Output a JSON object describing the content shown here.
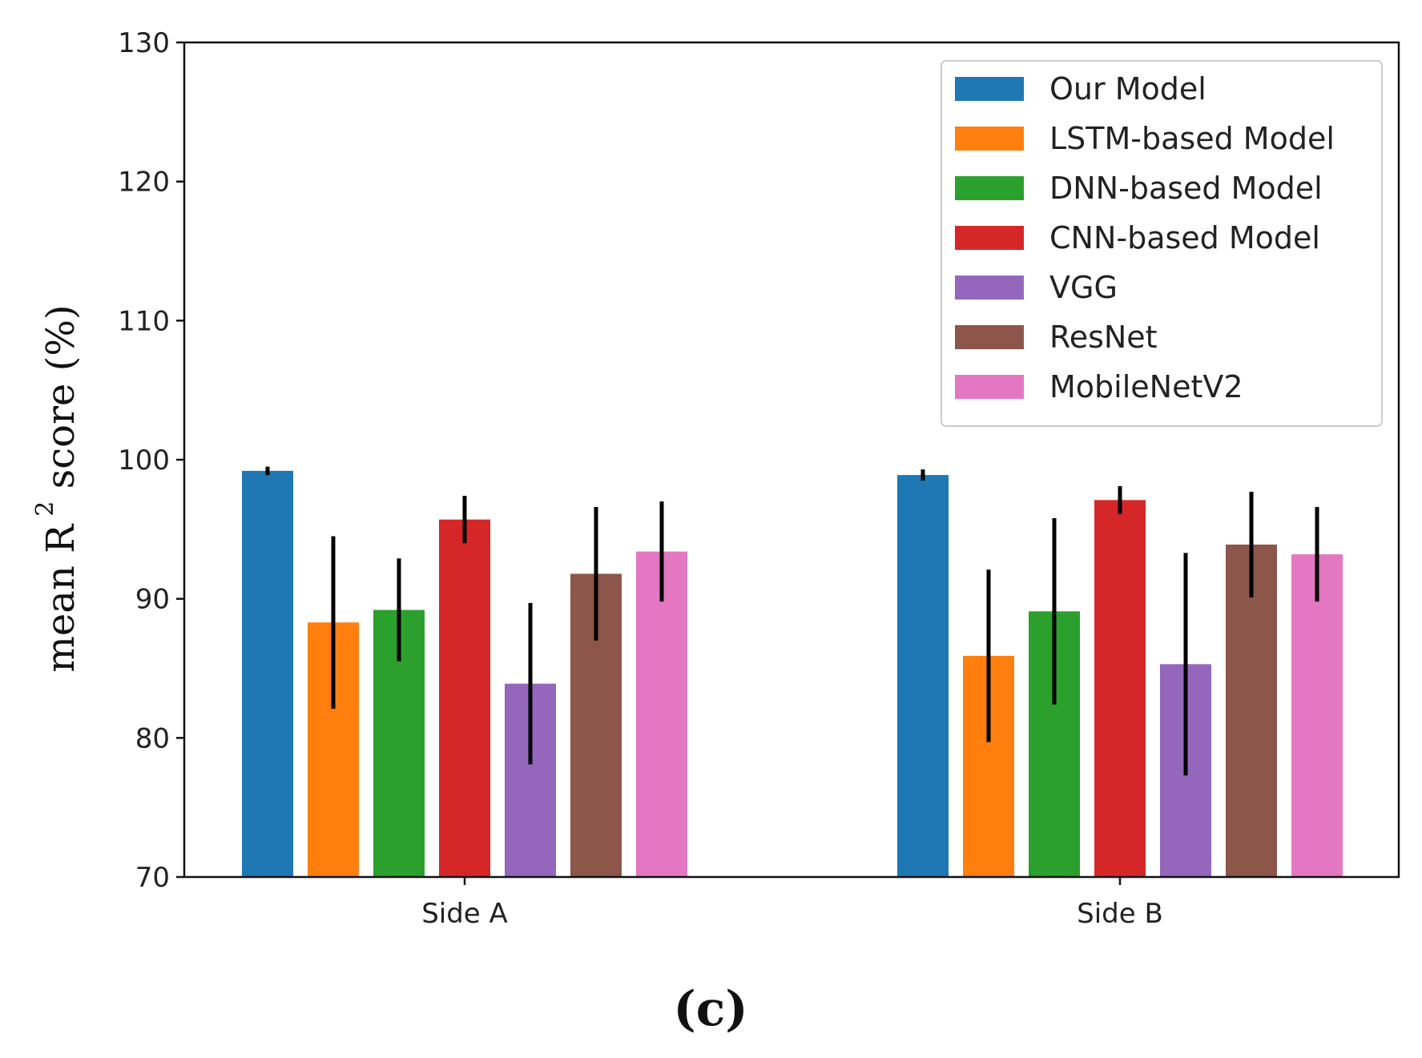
{
  "chart_data": {
    "type": "bar",
    "title": "",
    "xlabel": "",
    "ylabel": {
      "prefix": "mean R",
      "superscript": "2",
      "suffix": " score (%)"
    },
    "ylim": [
      70,
      130
    ],
    "yticks": [
      70,
      80,
      90,
      100,
      110,
      120,
      130
    ],
    "categories": [
      "Side A",
      "Side B"
    ],
    "legend_position": "top-right",
    "grid": false,
    "panel_label": "(c)",
    "series": [
      {
        "name": "Our Model",
        "color": "#1f77b4",
        "values": [
          99.2,
          98.9
        ],
        "errors": [
          0.3,
          0.4
        ]
      },
      {
        "name": "LSTM-based Model",
        "color": "#ff7f0e",
        "values": [
          88.3,
          85.9
        ],
        "errors": [
          6.2,
          6.2
        ]
      },
      {
        "name": "DNN-based Model",
        "color": "#2ca02c",
        "values": [
          89.2,
          89.1
        ],
        "errors": [
          3.7,
          6.7
        ]
      },
      {
        "name": "CNN-based Model",
        "color": "#d62728",
        "values": [
          95.7,
          97.1
        ],
        "errors": [
          1.7,
          1.0
        ]
      },
      {
        "name": "VGG",
        "color": "#9467bd",
        "values": [
          83.9,
          85.3
        ],
        "errors": [
          5.8,
          8.0
        ]
      },
      {
        "name": "ResNet",
        "color": "#8c564b",
        "values": [
          91.8,
          93.9
        ],
        "errors": [
          4.8,
          3.8
        ]
      },
      {
        "name": "MobileNetV2",
        "color": "#e377c2",
        "values": [
          93.4,
          93.2
        ],
        "errors": [
          3.6,
          3.4
        ]
      }
    ]
  }
}
